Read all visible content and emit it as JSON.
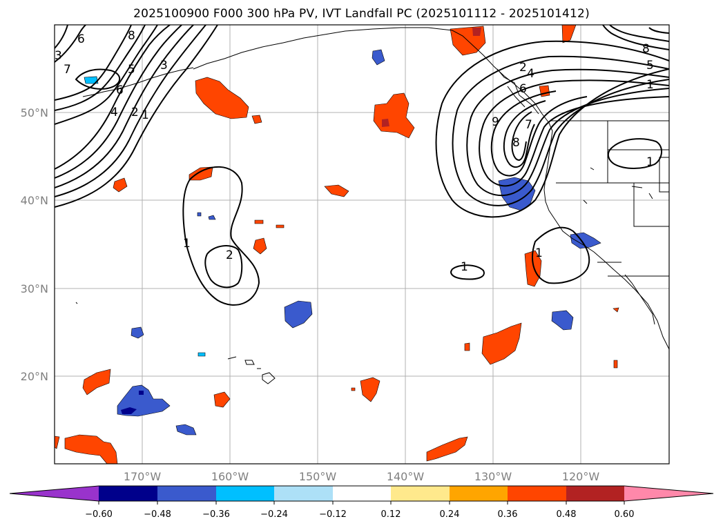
{
  "title": "2025100900 F000 300 hPa PV, IVT Landfall PC (2025101112 - 2025101412)",
  "axes": {
    "lat_labels": [
      "50°N",
      "40°N",
      "30°N",
      "20°N"
    ],
    "lon_labels": [
      "170°W",
      "160°W",
      "150°W",
      "140°W",
      "130°W",
      "120°W"
    ]
  },
  "colorbar": {
    "tick_labels": [
      "−0.60",
      "−0.48",
      "−0.36",
      "−0.24",
      "−0.12",
      "0.12",
      "0.24",
      "0.36",
      "0.48",
      "0.60"
    ],
    "colors": [
      "#9933cc",
      "#00008b",
      "#3a5acd",
      "#00bfff",
      "#ade0f7",
      "#ffffff",
      "#ffe98c",
      "#ffa500",
      "#ff4500",
      "#b22222",
      "#ff88aa"
    ]
  },
  "contour_labels": {
    "pv_west": [
      "6",
      "8",
      "7",
      "5",
      "3",
      "6",
      "4",
      "2",
      "1",
      "3"
    ],
    "pv_east": [
      "2",
      "4",
      "6",
      "8",
      "9",
      "8",
      "7",
      "5",
      "1"
    ],
    "pc": [
      "1",
      "2",
      "1",
      "1",
      "1"
    ]
  }
}
